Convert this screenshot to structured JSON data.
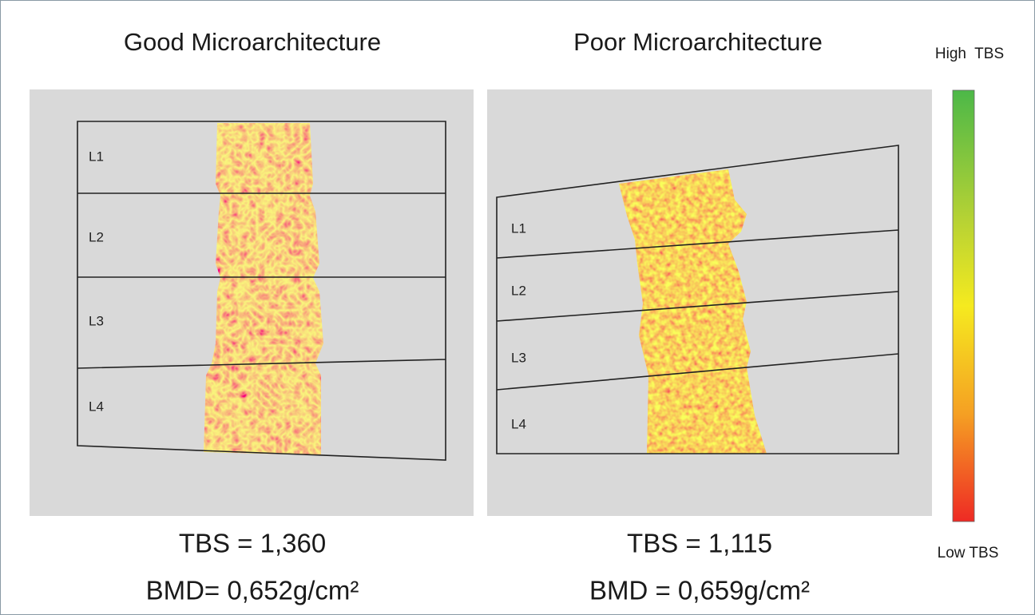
{
  "panels": [
    {
      "title": "Good Microarchitecture",
      "vertebrae": [
        "L1",
        "L2",
        "L3",
        "L4"
      ],
      "tbs": "TBS = 1,360",
      "bmd": "BMD= 0,652g/cm²"
    },
    {
      "title": "Poor Microarchitecture",
      "vertebrae": [
        "L1",
        "L2",
        "L3",
        "L4"
      ],
      "tbs": "TBS = 1,115",
      "bmd": "BMD = 0,659g/cm²"
    }
  ],
  "colorbar": {
    "high": "High  TBS",
    "low": "Low TBS"
  }
}
